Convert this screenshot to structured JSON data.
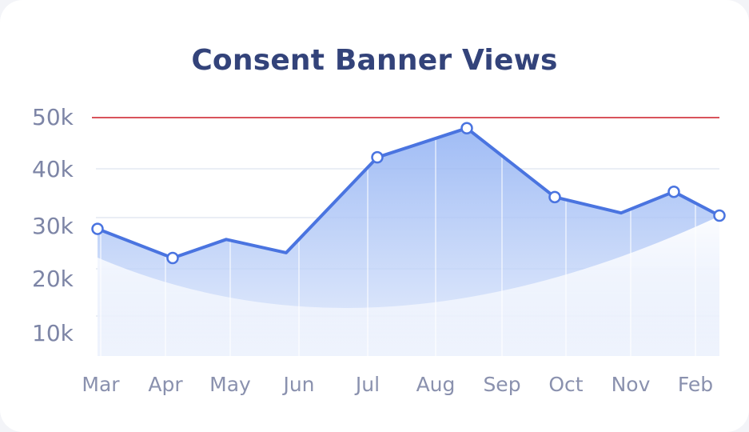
{
  "chart_data": {
    "type": "area",
    "title": "Consent Banner Views",
    "xlabel": "",
    "ylabel": "",
    "categories": [
      "Mar",
      "Apr",
      "May",
      "Jun",
      "Jul",
      "Aug",
      "Sep",
      "Oct",
      "Nov",
      "Feb"
    ],
    "series": [
      {
        "values": [
          29,
          23.5,
          27,
          24.5,
          42.5,
          48,
          35,
          32,
          36,
          31.5
        ],
        "points_at": [
          "Mar",
          "Apr",
          "May",
          "Jun",
          "Jul",
          "Aug",
          "Oct",
          "Nov",
          "Feb"
        ],
        "marked": [
          true,
          true,
          false,
          false,
          true,
          true,
          true,
          false,
          true,
          true
        ],
        "color": "#4a74e0"
      }
    ],
    "y_ticks": [
      "10k",
      "20k",
      "30k",
      "40k",
      "50k"
    ],
    "ylim": [
      5,
      50
    ],
    "reference_line": {
      "y": 50,
      "color": "#d9535b"
    },
    "grid": true,
    "legend": "none",
    "colors": {
      "line": "#4a74e0",
      "area": "#aec4f5",
      "title": "#33437a",
      "tick": "#7d85a6"
    }
  }
}
